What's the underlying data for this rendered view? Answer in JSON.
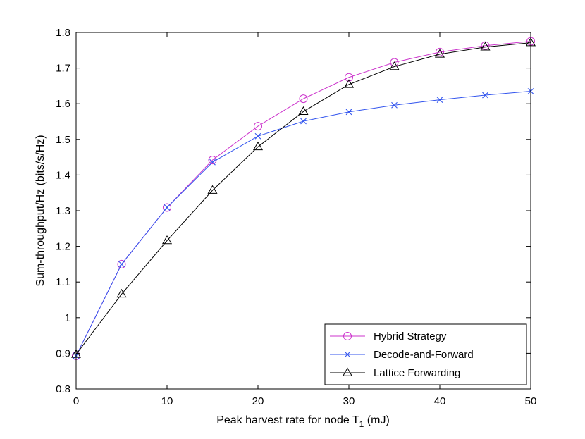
{
  "chart_data": {
    "type": "line",
    "title": "",
    "xlabel": "Peak harvest rate for node T",
    "xlabel_subscript": "1",
    "xlabel_suffix": " (mJ)",
    "ylabel": "Sum-throughput/Hz (bits/s/Hz)",
    "xlim": [
      0,
      50
    ],
    "ylim": [
      0.8,
      1.8
    ],
    "xticks": [
      0,
      10,
      20,
      30,
      40,
      50
    ],
    "yticks": [
      0.8,
      0.9,
      1,
      1.1,
      1.2,
      1.3,
      1.4,
      1.5,
      1.6,
      1.7,
      1.8
    ],
    "xtick_labels": [
      "0",
      "10",
      "20",
      "30",
      "40",
      "50"
    ],
    "ytick_labels": [
      "0.8",
      "0.9",
      "1",
      "1.1",
      "1.2",
      "1.3",
      "1.4",
      "1.5",
      "1.6",
      "1.7",
      "1.8"
    ],
    "grid": false,
    "legend_position": "bottom-right",
    "x": [
      0,
      5,
      10,
      15,
      20,
      25,
      30,
      35,
      40,
      45,
      50
    ],
    "series": [
      {
        "name": "Hybrid Strategy",
        "color": "#cc33cc",
        "marker": "circle",
        "values": [
          0.893,
          1.15,
          1.309,
          1.442,
          1.537,
          1.614,
          1.674,
          1.716,
          1.745,
          1.763,
          1.775
        ]
      },
      {
        "name": "Decode-and-Forward",
        "color": "#3355ee",
        "marker": "x",
        "values": [
          0.893,
          1.15,
          1.309,
          1.436,
          1.509,
          1.551,
          1.577,
          1.596,
          1.611,
          1.624,
          1.635
        ]
      },
      {
        "name": "Lattice Forwarding",
        "color": "#000000",
        "marker": "triangle",
        "values": [
          0.897,
          1.066,
          1.216,
          1.357,
          1.479,
          1.578,
          1.654,
          1.704,
          1.739,
          1.759,
          1.771
        ]
      }
    ]
  }
}
